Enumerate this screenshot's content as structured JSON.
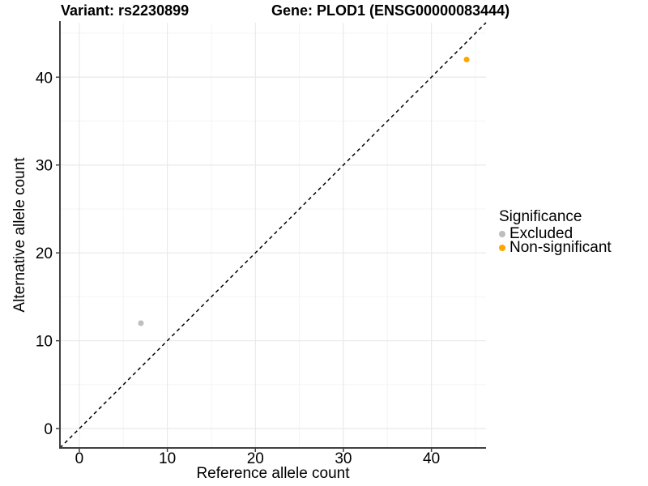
{
  "titles": {
    "left": "Variant: rs2230899",
    "right": "Gene: PLOD1 (ENSG00000083444)"
  },
  "chart_data": {
    "type": "scatter",
    "xlabel": "Reference allele count",
    "ylabel": "Alternative allele count",
    "xlim": [
      -2.2,
      46.2
    ],
    "ylim": [
      -2.2,
      46.2
    ],
    "xticks": [
      0,
      10,
      20,
      30,
      40
    ],
    "yticks": [
      0,
      10,
      20,
      30,
      40
    ],
    "minor_grid": [
      5,
      15,
      25,
      35,
      45
    ],
    "grid": "major+minor",
    "identity_line": {
      "slope": 1,
      "intercept": 0,
      "style": "dashed",
      "color": "#000000"
    },
    "legend": {
      "title": "Significance",
      "position": "right"
    },
    "series": [
      {
        "name": "Excluded",
        "color": "#BEBEBE",
        "points": [
          {
            "x": 7,
            "y": 12
          }
        ]
      },
      {
        "name": "Non-significant",
        "color": "#FFA500",
        "points": [
          {
            "x": 44,
            "y": 42
          }
        ]
      }
    ],
    "colors": {
      "axis_line": "#404040",
      "tick_mark": "#404040",
      "tick_label": "#000000",
      "major_grid": "#e9e9e9",
      "minor_grid": "#f4f4f4"
    }
  }
}
